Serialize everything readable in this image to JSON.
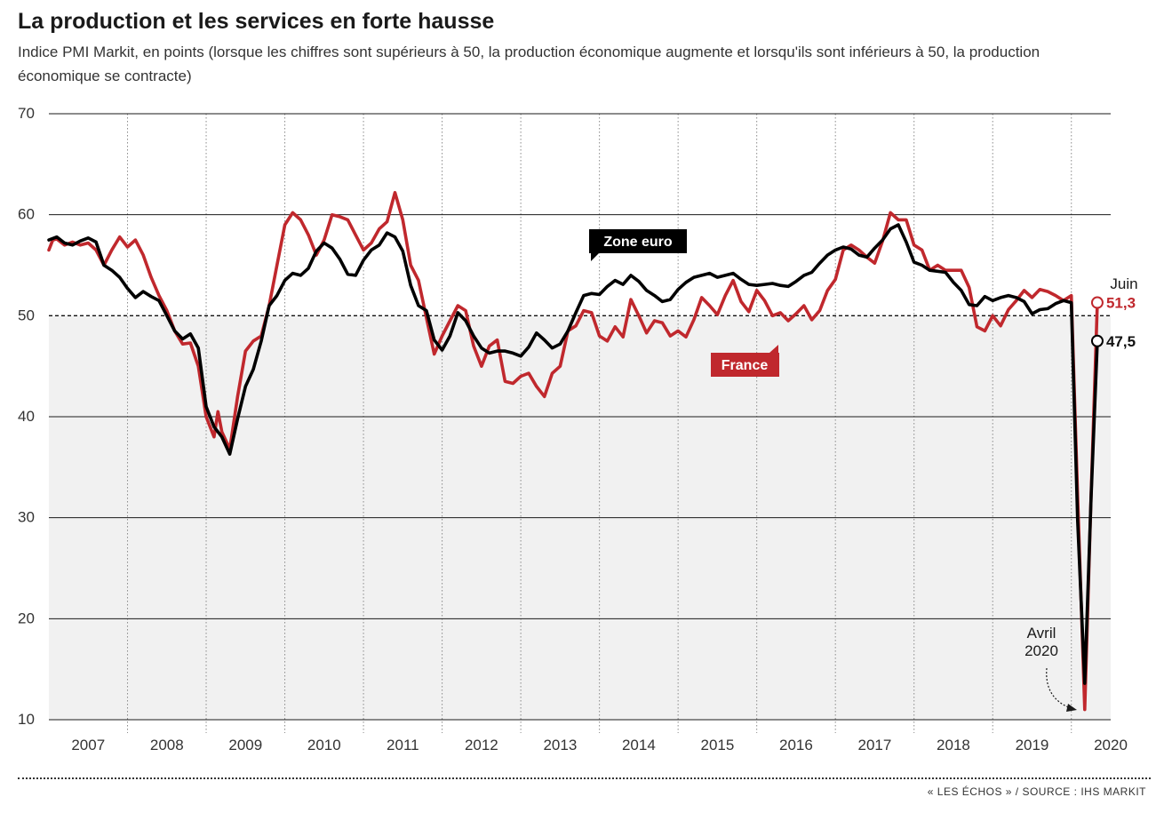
{
  "header": {
    "title": "La production et les services en forte hausse",
    "subtitle": "Indice PMI Markit, en points (lorsque les chiffres sont supérieurs à 50, la production économique augmente et lorsqu'ils sont inférieurs à 50, la production économique se contracte)"
  },
  "source": "« LES ÉCHOS » / SOURCE : IHS MARKIT",
  "colors": {
    "zone_euro": "#000000",
    "france": "#c0282d",
    "shade": "#f1f1f1"
  },
  "chart_data": {
    "type": "line",
    "title": "La production et les services en forte hausse",
    "xlabel": "",
    "ylabel": "",
    "ylim": [
      10,
      70
    ],
    "yticks": [
      70,
      60,
      50,
      40,
      30,
      20,
      10
    ],
    "xlim": [
      2007.0,
      2020.5
    ],
    "year_labels": [
      "2007",
      "2008",
      "2009",
      "2010",
      "2011",
      "2012",
      "2013",
      "2014",
      "2015",
      "2016",
      "2017",
      "2018",
      "2019",
      "2020"
    ],
    "reference_line": 50,
    "grid": "horizontal",
    "shaded_below": 50,
    "series": [
      {
        "name": "Zone euro",
        "color": "#000000",
        "points": [
          [
            2007.0,
            57.5
          ],
          [
            2007.1,
            57.8
          ],
          [
            2007.2,
            57.2
          ],
          [
            2007.3,
            57.0
          ],
          [
            2007.4,
            57.4
          ],
          [
            2007.5,
            57.7
          ],
          [
            2007.6,
            57.3
          ],
          [
            2007.7,
            55.0
          ],
          [
            2007.8,
            54.5
          ],
          [
            2007.9,
            53.8
          ],
          [
            2008.0,
            52.7
          ],
          [
            2008.1,
            51.8
          ],
          [
            2008.2,
            52.4
          ],
          [
            2008.3,
            51.9
          ],
          [
            2008.4,
            51.5
          ],
          [
            2008.5,
            50.0
          ],
          [
            2008.6,
            48.5
          ],
          [
            2008.7,
            47.7
          ],
          [
            2008.8,
            48.2
          ],
          [
            2008.9,
            46.8
          ],
          [
            2009.0,
            41.0
          ],
          [
            2009.1,
            39.0
          ],
          [
            2009.2,
            38.0
          ],
          [
            2009.3,
            36.3
          ],
          [
            2009.4,
            39.8
          ],
          [
            2009.5,
            43.0
          ],
          [
            2009.6,
            44.7
          ],
          [
            2009.7,
            47.5
          ],
          [
            2009.8,
            51.0
          ],
          [
            2009.9,
            52.0
          ],
          [
            2010.0,
            53.5
          ],
          [
            2010.1,
            54.2
          ],
          [
            2010.2,
            54.0
          ],
          [
            2010.3,
            54.7
          ],
          [
            2010.4,
            56.4
          ],
          [
            2010.5,
            57.2
          ],
          [
            2010.6,
            56.7
          ],
          [
            2010.7,
            55.6
          ],
          [
            2010.8,
            54.1
          ],
          [
            2010.9,
            54.0
          ],
          [
            2011.0,
            55.5
          ],
          [
            2011.1,
            56.5
          ],
          [
            2011.2,
            57.0
          ],
          [
            2011.3,
            58.2
          ],
          [
            2011.4,
            57.8
          ],
          [
            2011.5,
            56.4
          ],
          [
            2011.6,
            53.0
          ],
          [
            2011.7,
            51.0
          ],
          [
            2011.8,
            50.5
          ],
          [
            2011.9,
            47.6
          ],
          [
            2012.0,
            46.6
          ],
          [
            2012.1,
            48.0
          ],
          [
            2012.2,
            50.3
          ],
          [
            2012.3,
            49.5
          ],
          [
            2012.4,
            48.0
          ],
          [
            2012.5,
            46.8
          ],
          [
            2012.6,
            46.3
          ],
          [
            2012.7,
            46.5
          ],
          [
            2012.8,
            46.5
          ],
          [
            2012.9,
            46.3
          ],
          [
            2013.0,
            46.0
          ],
          [
            2013.1,
            46.9
          ],
          [
            2013.2,
            48.3
          ],
          [
            2013.3,
            47.6
          ],
          [
            2013.4,
            46.8
          ],
          [
            2013.5,
            47.2
          ],
          [
            2013.6,
            48.5
          ],
          [
            2013.7,
            50.3
          ],
          [
            2013.8,
            52.0
          ],
          [
            2013.9,
            52.2
          ],
          [
            2014.0,
            52.1
          ],
          [
            2014.1,
            52.9
          ],
          [
            2014.2,
            53.5
          ],
          [
            2014.3,
            53.1
          ],
          [
            2014.4,
            54.0
          ],
          [
            2014.5,
            53.4
          ],
          [
            2014.6,
            52.5
          ],
          [
            2014.7,
            52.0
          ],
          [
            2014.8,
            51.4
          ],
          [
            2014.9,
            51.6
          ],
          [
            2015.0,
            52.6
          ],
          [
            2015.1,
            53.3
          ],
          [
            2015.2,
            53.8
          ],
          [
            2015.3,
            54.0
          ],
          [
            2015.4,
            54.2
          ],
          [
            2015.5,
            53.8
          ],
          [
            2015.6,
            54.0
          ],
          [
            2015.7,
            54.2
          ],
          [
            2015.8,
            53.6
          ],
          [
            2015.9,
            53.1
          ],
          [
            2016.0,
            53.0
          ],
          [
            2016.1,
            53.1
          ],
          [
            2016.2,
            53.2
          ],
          [
            2016.3,
            53.0
          ],
          [
            2016.4,
            52.9
          ],
          [
            2016.5,
            53.4
          ],
          [
            2016.6,
            54.0
          ],
          [
            2016.7,
            54.3
          ],
          [
            2016.8,
            55.2
          ],
          [
            2016.9,
            56.0
          ],
          [
            2017.0,
            56.5
          ],
          [
            2017.1,
            56.8
          ],
          [
            2017.2,
            56.6
          ],
          [
            2017.3,
            56.0
          ],
          [
            2017.4,
            55.8
          ],
          [
            2017.5,
            56.7
          ],
          [
            2017.6,
            57.5
          ],
          [
            2017.7,
            58.6
          ],
          [
            2017.8,
            59.0
          ],
          [
            2017.9,
            57.3
          ],
          [
            2018.0,
            55.3
          ],
          [
            2018.1,
            55.0
          ],
          [
            2018.2,
            54.5
          ],
          [
            2018.3,
            54.4
          ],
          [
            2018.4,
            54.3
          ],
          [
            2018.5,
            53.3
          ],
          [
            2018.6,
            52.5
          ],
          [
            2018.7,
            51.1
          ],
          [
            2018.8,
            51.0
          ],
          [
            2018.9,
            51.9
          ],
          [
            2019.0,
            51.5
          ],
          [
            2019.1,
            51.8
          ],
          [
            2019.2,
            52.0
          ],
          [
            2019.3,
            51.8
          ],
          [
            2019.4,
            51.4
          ],
          [
            2019.5,
            50.2
          ],
          [
            2019.6,
            50.6
          ],
          [
            2019.7,
            50.7
          ],
          [
            2019.8,
            51.2
          ],
          [
            2019.9,
            51.5
          ],
          [
            2020.0,
            51.3
          ],
          [
            2020.08,
            29.7
          ],
          [
            2020.17,
            13.6
          ],
          [
            2020.25,
            31.9
          ],
          [
            2020.33,
            47.5
          ]
        ]
      },
      {
        "name": "France",
        "color": "#c0282d",
        "points": [
          [
            2007.0,
            56.5
          ],
          [
            2007.05,
            57.5
          ],
          [
            2007.1,
            57.6
          ],
          [
            2007.2,
            57.0
          ],
          [
            2007.3,
            57.3
          ],
          [
            2007.4,
            57.0
          ],
          [
            2007.5,
            57.2
          ],
          [
            2007.6,
            56.5
          ],
          [
            2007.7,
            55.0
          ],
          [
            2007.8,
            56.5
          ],
          [
            2007.9,
            57.8
          ],
          [
            2008.0,
            56.8
          ],
          [
            2008.1,
            57.5
          ],
          [
            2008.2,
            56.0
          ],
          [
            2008.3,
            53.8
          ],
          [
            2008.4,
            52.0
          ],
          [
            2008.5,
            50.5
          ],
          [
            2008.6,
            48.5
          ],
          [
            2008.7,
            47.2
          ],
          [
            2008.8,
            47.3
          ],
          [
            2008.9,
            45.0
          ],
          [
            2009.0,
            40.0
          ],
          [
            2009.1,
            38.0
          ],
          [
            2009.15,
            40.5
          ],
          [
            2009.2,
            38.5
          ],
          [
            2009.3,
            36.8
          ],
          [
            2009.4,
            42.0
          ],
          [
            2009.5,
            46.5
          ],
          [
            2009.6,
            47.5
          ],
          [
            2009.7,
            48.0
          ],
          [
            2009.8,
            51.0
          ],
          [
            2009.9,
            55.0
          ],
          [
            2010.0,
            59.0
          ],
          [
            2010.1,
            60.2
          ],
          [
            2010.2,
            59.5
          ],
          [
            2010.3,
            58.0
          ],
          [
            2010.4,
            56.0
          ],
          [
            2010.5,
            57.5
          ],
          [
            2010.6,
            60.0
          ],
          [
            2010.7,
            59.8
          ],
          [
            2010.8,
            59.5
          ],
          [
            2010.9,
            58.0
          ],
          [
            2011.0,
            56.5
          ],
          [
            2011.1,
            57.2
          ],
          [
            2011.2,
            58.6
          ],
          [
            2011.3,
            59.3
          ],
          [
            2011.4,
            62.2
          ],
          [
            2011.5,
            59.5
          ],
          [
            2011.6,
            55.0
          ],
          [
            2011.7,
            53.5
          ],
          [
            2011.8,
            49.8
          ],
          [
            2011.9,
            46.2
          ],
          [
            2012.0,
            48.0
          ],
          [
            2012.1,
            49.5
          ],
          [
            2012.2,
            51.0
          ],
          [
            2012.3,
            50.5
          ],
          [
            2012.4,
            47.0
          ],
          [
            2012.5,
            45.0
          ],
          [
            2012.6,
            47.0
          ],
          [
            2012.7,
            47.6
          ],
          [
            2012.8,
            43.5
          ],
          [
            2012.9,
            43.3
          ],
          [
            2013.0,
            44.0
          ],
          [
            2013.1,
            44.3
          ],
          [
            2013.2,
            43.0
          ],
          [
            2013.3,
            42.0
          ],
          [
            2013.4,
            44.3
          ],
          [
            2013.5,
            45.0
          ],
          [
            2013.6,
            48.5
          ],
          [
            2013.7,
            49.0
          ],
          [
            2013.8,
            50.5
          ],
          [
            2013.9,
            50.3
          ],
          [
            2014.0,
            48.0
          ],
          [
            2014.1,
            47.5
          ],
          [
            2014.2,
            48.9
          ],
          [
            2014.3,
            47.9
          ],
          [
            2014.4,
            51.6
          ],
          [
            2014.5,
            50.0
          ],
          [
            2014.6,
            48.3
          ],
          [
            2014.7,
            49.5
          ],
          [
            2014.8,
            49.3
          ],
          [
            2014.9,
            48.0
          ],
          [
            2015.0,
            48.5
          ],
          [
            2015.1,
            47.9
          ],
          [
            2015.2,
            49.6
          ],
          [
            2015.3,
            51.8
          ],
          [
            2015.4,
            51.0
          ],
          [
            2015.5,
            50.1
          ],
          [
            2015.6,
            52.0
          ],
          [
            2015.7,
            53.5
          ],
          [
            2015.8,
            51.4
          ],
          [
            2015.9,
            50.4
          ],
          [
            2016.0,
            52.5
          ],
          [
            2016.1,
            51.5
          ],
          [
            2016.2,
            50.0
          ],
          [
            2016.3,
            50.3
          ],
          [
            2016.4,
            49.5
          ],
          [
            2016.5,
            50.2
          ],
          [
            2016.6,
            51.0
          ],
          [
            2016.7,
            49.6
          ],
          [
            2016.8,
            50.5
          ],
          [
            2016.9,
            52.5
          ],
          [
            2017.0,
            53.6
          ],
          [
            2017.1,
            56.5
          ],
          [
            2017.2,
            57.0
          ],
          [
            2017.3,
            56.5
          ],
          [
            2017.4,
            55.8
          ],
          [
            2017.5,
            55.2
          ],
          [
            2017.6,
            57.4
          ],
          [
            2017.7,
            60.2
          ],
          [
            2017.8,
            59.5
          ],
          [
            2017.9,
            59.5
          ],
          [
            2018.0,
            57.0
          ],
          [
            2018.1,
            56.5
          ],
          [
            2018.2,
            54.5
          ],
          [
            2018.3,
            55.0
          ],
          [
            2018.4,
            54.5
          ],
          [
            2018.5,
            54.5
          ],
          [
            2018.6,
            54.5
          ],
          [
            2018.7,
            52.8
          ],
          [
            2018.8,
            48.9
          ],
          [
            2018.9,
            48.5
          ],
          [
            2019.0,
            50.0
          ],
          [
            2019.1,
            49.0
          ],
          [
            2019.2,
            50.6
          ],
          [
            2019.3,
            51.5
          ],
          [
            2019.4,
            52.5
          ],
          [
            2019.5,
            51.8
          ],
          [
            2019.6,
            52.6
          ],
          [
            2019.7,
            52.4
          ],
          [
            2019.8,
            52.0
          ],
          [
            2019.9,
            51.5
          ],
          [
            2020.0,
            52.0
          ],
          [
            2020.08,
            32.1
          ],
          [
            2020.17,
            11.0
          ],
          [
            2020.25,
            32.1
          ],
          [
            2020.33,
            51.3
          ]
        ]
      }
    ],
    "annotations": {
      "zone_euro_label": "Zone euro",
      "france_label": "France",
      "month_label": "Juin",
      "france_end_value": "51,3",
      "zone_euro_end_value": "47,5",
      "april_label_line1": "Avril",
      "april_label_line2": "2020"
    }
  }
}
